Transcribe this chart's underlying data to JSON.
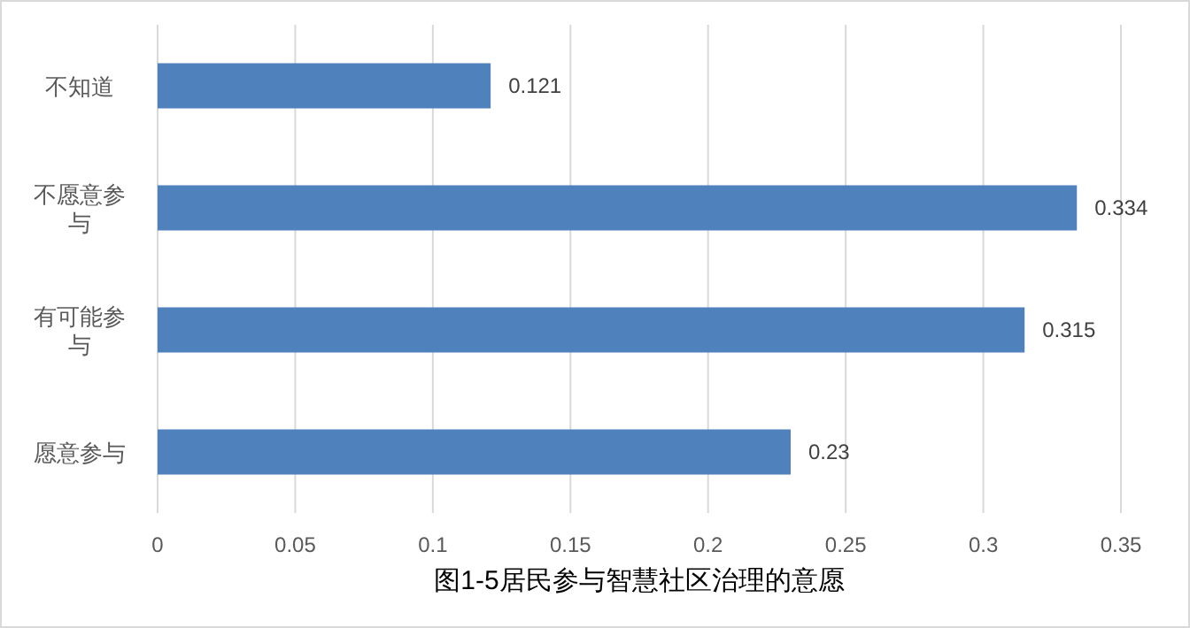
{
  "chart_data": {
    "type": "bar",
    "orientation": "horizontal",
    "title": "图1-5居民参与智慧社区治理的意愿",
    "categories": [
      "不知道",
      "不愿意参与",
      "有可能参与",
      "愿意参与"
    ],
    "values": [
      0.121,
      0.334,
      0.315,
      0.23
    ],
    "color": "#4f81bd",
    "xlim": [
      0,
      0.35
    ],
    "xticks": [
      0,
      0.05,
      0.1,
      0.15,
      0.2,
      0.25,
      0.3,
      0.35
    ],
    "grid": "x",
    "data_labels": true
  }
}
